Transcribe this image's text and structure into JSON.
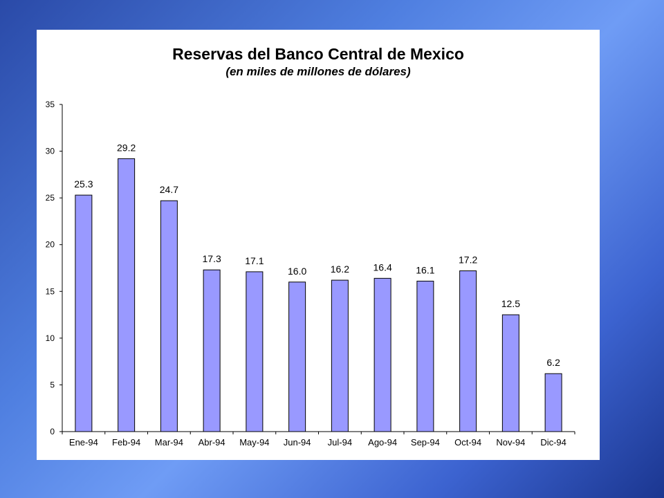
{
  "colors": {
    "bar_fill": "#9999ff",
    "bar_stroke": "#000000",
    "panel": "#ffffff"
  },
  "chart_data": {
    "type": "bar",
    "title": "Reservas del Banco Central de Mexico",
    "subtitle": "(en miles de millones de dólares)",
    "xlabel": "",
    "ylabel": "",
    "ylim": [
      0,
      35
    ],
    "yticks": [
      0,
      5,
      10,
      15,
      20,
      25,
      30,
      35
    ],
    "grid": false,
    "legend": "none",
    "categories": [
      "Ene-94",
      "Feb-94",
      "Mar-94",
      "Abr-94",
      "May-94",
      "Jun-94",
      "Jul-94",
      "Ago-94",
      "Sep-94",
      "Oct-94",
      "Nov-94",
      "Dic-94"
    ],
    "values": [
      25.3,
      29.2,
      24.7,
      17.3,
      17.1,
      16.0,
      16.2,
      16.4,
      16.1,
      17.2,
      12.5,
      6.2
    ],
    "data_labels": [
      "25.3",
      "29.2",
      "24.7",
      "17.3",
      "17.1",
      "16.0",
      "16.2",
      "16.4",
      "16.1",
      "17.2",
      "12.5",
      "6.2"
    ]
  }
}
